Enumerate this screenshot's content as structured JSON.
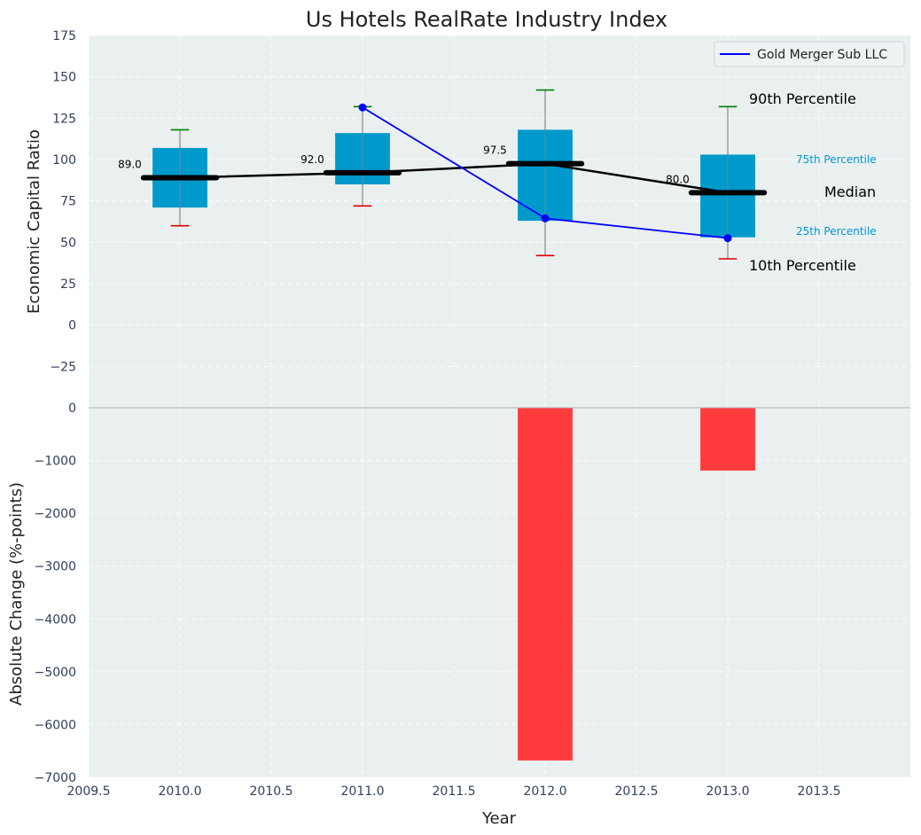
{
  "chart_data": {
    "type": "box_and_bar",
    "title": "Us Hotels RealRate Industry Index",
    "xlabel": "Year",
    "xlim": [
      2009.5,
      2014.0
    ],
    "x_ticks": [
      2009.5,
      2010.0,
      2010.5,
      2011.0,
      2011.5,
      2012.0,
      2012.5,
      2013.0,
      2013.5
    ],
    "x_tick_labels": [
      "2009.5",
      "2010.0",
      "2010.5",
      "2011.0",
      "2011.5",
      "2012.0",
      "2012.5",
      "2013.0",
      "2013.5"
    ],
    "grid": true,
    "top_panel": {
      "ylabel": "Economic Capital Ratio",
      "ylim": [
        -50,
        175
      ],
      "y_ticks": [
        -25,
        0,
        25,
        50,
        75,
        100,
        125,
        150,
        175
      ],
      "y_tick_labels": [
        "−25",
        "0",
        "25",
        "50",
        "75",
        "100",
        "125",
        "150",
        "175"
      ],
      "boxes": [
        {
          "year": 2010,
          "p10": 60,
          "p25": 71,
          "median": 89,
          "p75": 107,
          "p90": 118,
          "median_label": "89.0"
        },
        {
          "year": 2011,
          "p10": 72,
          "p25": 85,
          "median": 92,
          "p75": 116,
          "p90": 132,
          "median_label": "92.0"
        },
        {
          "year": 2012,
          "p10": 42,
          "p25": 63,
          "median": 97.5,
          "p75": 118,
          "p90": 142,
          "median_label": "97.5"
        },
        {
          "year": 2013,
          "p10": 40,
          "p25": 53,
          "median": 80,
          "p75": 103,
          "p90": 132,
          "median_label": "80.0"
        }
      ],
      "median_line": {
        "years": [
          2010,
          2011,
          2012,
          2013
        ],
        "values": [
          89,
          92,
          97.5,
          80
        ]
      },
      "company_series": {
        "name": "Gold Merger Sub LLC",
        "x": [
          2011,
          2012,
          2013
        ],
        "y": [
          131.5,
          64.5,
          52.5
        ],
        "color": "#0000ff"
      },
      "annotations": {
        "p90": "90th Percentile",
        "p75": "75th Percentile",
        "median": "Median",
        "p25": "25th Percentile",
        "p10": "10th Percentile"
      },
      "legend_position": "top-right"
    },
    "bottom_panel": {
      "ylabel": "Absolute Change (%-points)",
      "ylim": [
        -7000,
        0
      ],
      "y_ticks": [
        -7000,
        -6000,
        -5000,
        -4000,
        -3000,
        -2000,
        -1000,
        0
      ],
      "y_tick_labels": [
        "−7000",
        "−6000",
        "−5000",
        "−4000",
        "−3000",
        "−2000",
        "−1000",
        "0"
      ],
      "bars": [
        {
          "year": 2012,
          "value": -6680
        },
        {
          "year": 2013,
          "value": -1190
        }
      ]
    },
    "colors": {
      "box": "#0099cc",
      "whisker": "#888888",
      "p90_cap": "#008000",
      "p10_cap": "#dd0000",
      "median": "#000000",
      "company": "#0000ff",
      "bar": "#ff3b3e",
      "percentile_label": "#0099cc"
    }
  }
}
